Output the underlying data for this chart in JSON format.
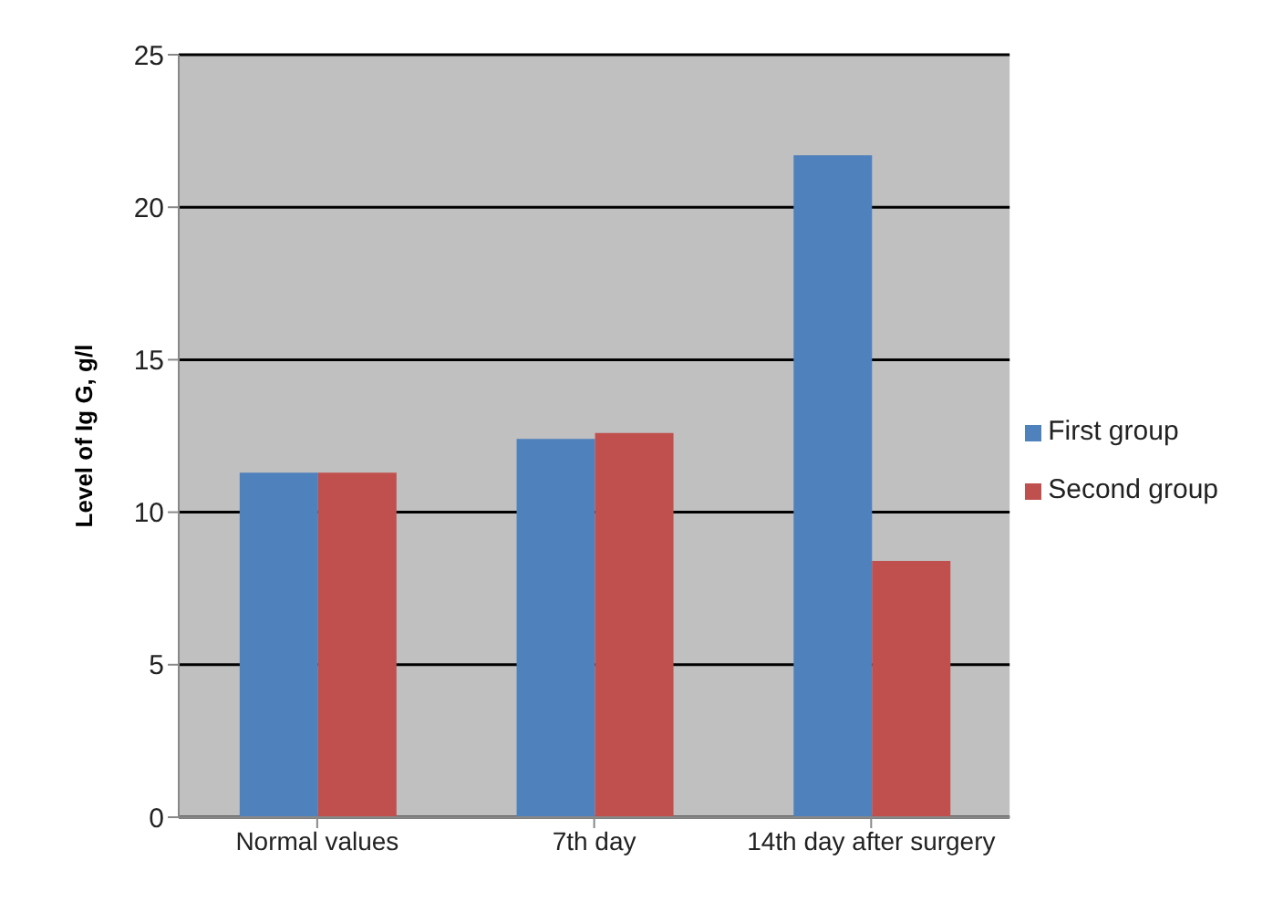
{
  "chart_data": {
    "type": "bar",
    "ylabel": "Level of Ig G, g/l",
    "categories": [
      "Normal values",
      "7th day",
      "14th day after surgery"
    ],
    "series": [
      {
        "name": "First group",
        "color": "#4f81bd",
        "values": [
          11.3,
          12.4,
          21.7
        ]
      },
      {
        "name": "Second group",
        "color": "#c0504d",
        "values": [
          11.3,
          12.6,
          8.4
        ]
      }
    ],
    "ylim": [
      0,
      25
    ],
    "yticks": [
      0,
      5,
      10,
      15,
      20,
      25
    ],
    "grid": "y",
    "legend": "right"
  }
}
